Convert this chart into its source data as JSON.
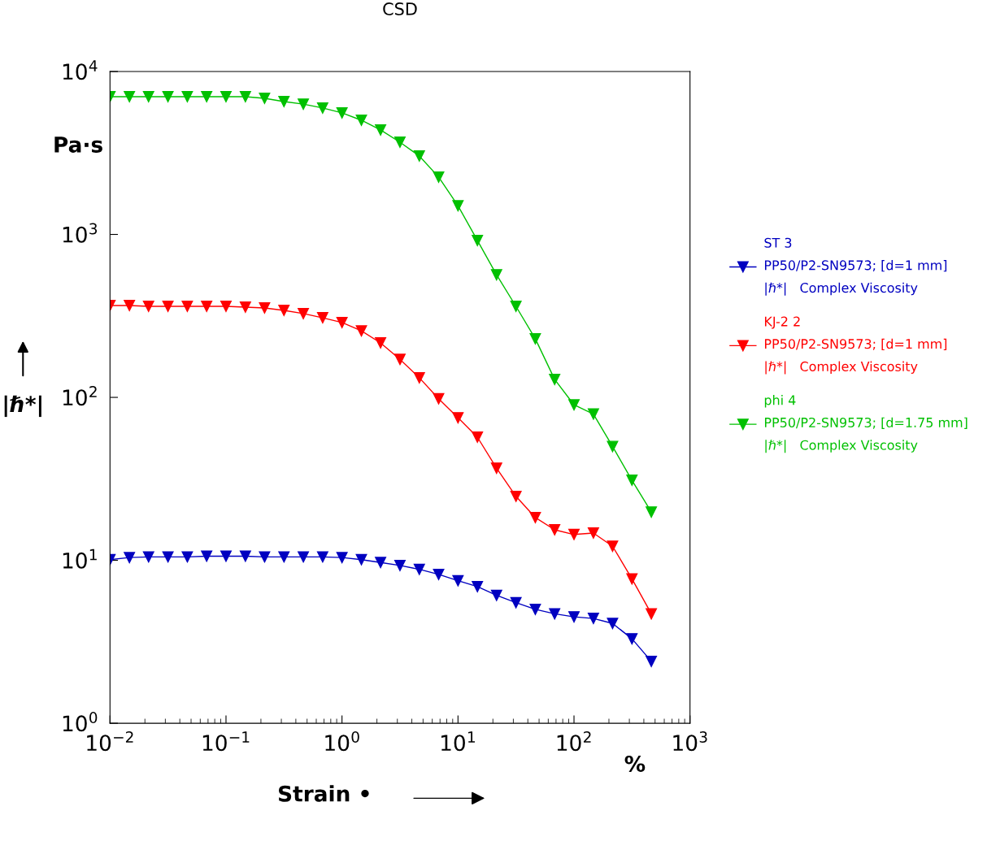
{
  "chart_data": {
    "type": "line",
    "title": "CSD",
    "xlabel": "Strain •",
    "ylabel": "|ℏ*|",
    "annotations": [
      "Pa·s",
      "%"
    ],
    "log": "xy",
    "marker": "triangle",
    "line_style": "solid",
    "grid": false,
    "legend": "right",
    "xlim": [
      0.01,
      1000
    ],
    "ylim": [
      1,
      10000
    ],
    "xticks": [
      {
        "value": 0.01,
        "label": "10$^{−2}$"
      },
      {
        "value": 0.1,
        "label": "10$^{−1}$"
      },
      {
        "value": 1,
        "label": "10$^{0}$"
      },
      {
        "value": 10,
        "label": "10$^{1}$"
      },
      {
        "value": 100,
        "label": "10$^{2}$"
      },
      {
        "value": 1000,
        "label": "10$^{3}$"
      }
    ],
    "yticks": [
      {
        "value": 1,
        "label": "10$^{0}$"
      },
      {
        "value": 10,
        "label": "10$^{1}$"
      },
      {
        "value": 100,
        "label": "10$^{2}$"
      },
      {
        "value": 1000,
        "label": "10$^{3}$"
      },
      {
        "value": 10000,
        "label": "10$^{4}$"
      }
    ],
    "x": [
      0.01,
      0.0147,
      0.0215,
      0.0316,
      0.0464,
      0.0681,
      0.1,
      0.147,
      0.215,
      0.316,
      0.464,
      0.681,
      1,
      1.47,
      2.15,
      3.16,
      4.64,
      6.81,
      10,
      14.7,
      21.5,
      31.6,
      46.4,
      68.1,
      100,
      147,
      215,
      316,
      464
    ],
    "series": [
      {
        "name": "ST 3\nPP50/P2-SN9573; [d=1 mm]\n|ℏ*|   Complex Viscosity",
        "color": "#0000c0",
        "values": [
          10.1,
          10.4,
          10.5,
          10.5,
          10.5,
          10.6,
          10.6,
          10.6,
          10.5,
          10.5,
          10.5,
          10.5,
          10.4,
          10.1,
          9.7,
          9.3,
          8.8,
          8.2,
          7.5,
          6.9,
          6.1,
          5.5,
          5.0,
          4.7,
          4.5,
          4.4,
          4.1,
          3.3,
          2.4
        ]
      },
      {
        "name": "KJ-2 2\nPP50/P2-SN9573; [d=1 mm]\n|ℏ*|   Complex Viscosity",
        "color": "#ff0000",
        "values": [
          366,
          366,
          362,
          362,
          362,
          362,
          362,
          358,
          354,
          342,
          327,
          308,
          288,
          256,
          216,
          171,
          132,
          98,
          75,
          57,
          36.8,
          24.7,
          18.3,
          15.4,
          14.4,
          14.7,
          12.2,
          7.7,
          4.7
        ]
      },
      {
        "name": "phi 4\nPP50/P2-SN9573; [d=1.75 mm]\n|ℏ*|   Complex Viscosity",
        "color": "#00c000",
        "values": [
          7000,
          7000,
          7000,
          7000,
          7000,
          7000,
          7000,
          7000,
          6840,
          6540,
          6310,
          5970,
          5570,
          5020,
          4380,
          3680,
          3030,
          2250,
          1500,
          918,
          566,
          362,
          229,
          129,
          90,
          79,
          50,
          31,
          19.8
        ]
      }
    ]
  }
}
